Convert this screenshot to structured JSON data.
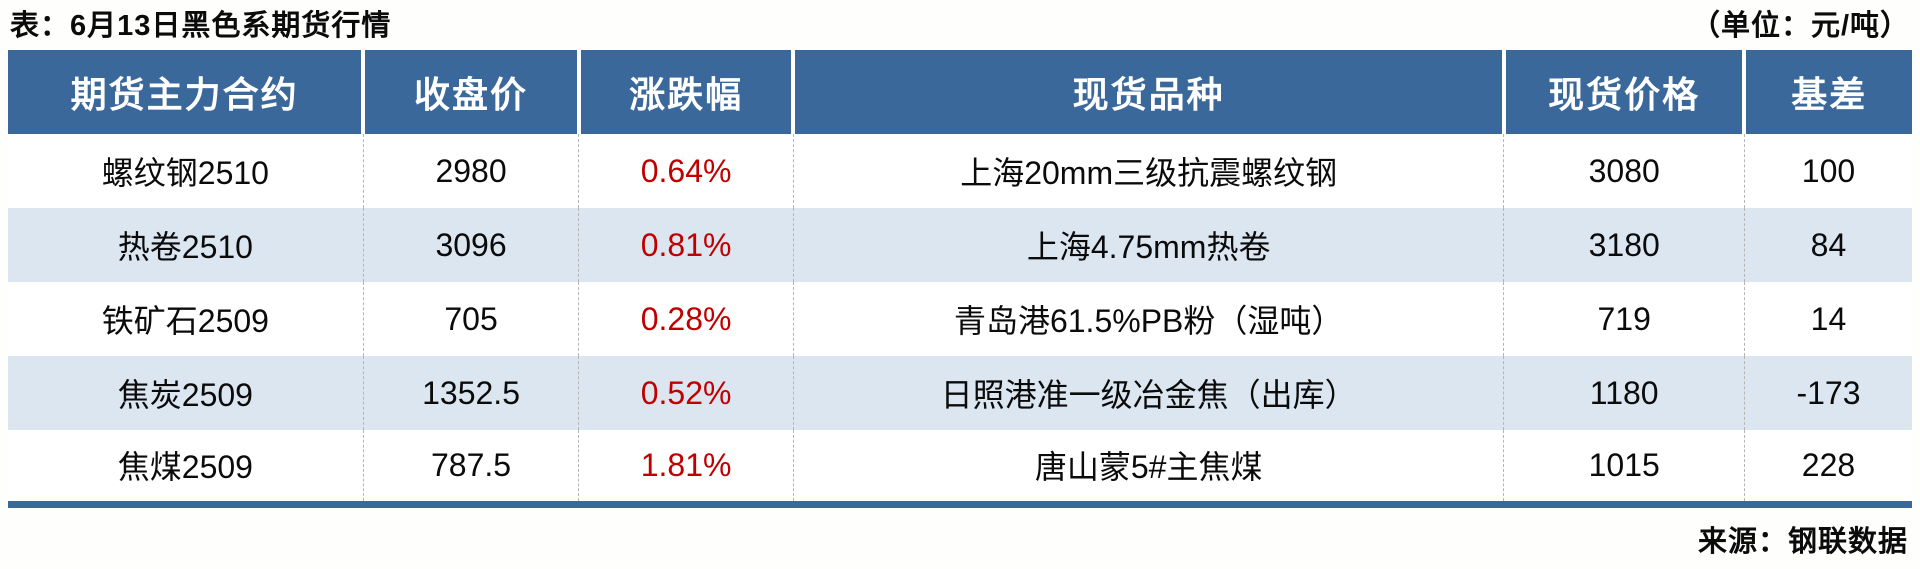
{
  "header": {
    "title": "表：6月13日黑色系期货行情",
    "unit": "（单位：元/吨）"
  },
  "footer": {
    "source": "来源：钢联数据"
  },
  "colors": {
    "header_bg": "#3a689b",
    "row_bg": "#ffffff",
    "row_alt_bg": "#dce6f1",
    "change_red": "#c00000",
    "border_blue": "#3a689b"
  },
  "chart_data": {
    "type": "table",
    "title": "6月13日黑色系期货行情",
    "unit": "元/吨",
    "columns": [
      "期货主力合约",
      "收盘价",
      "涨跌幅",
      "现货品种",
      "现货价格",
      "基差"
    ],
    "rows": [
      [
        "螺纹钢2510",
        "2980",
        "0.64%",
        "上海20mm三级抗震螺纹钢",
        "3080",
        "100"
      ],
      [
        "热卷2510",
        "3096",
        "0.81%",
        "上海4.75mm热卷",
        "3180",
        "84"
      ],
      [
        "铁矿石2509",
        "705",
        "0.28%",
        "青岛港61.5%PB粉（湿吨）",
        "719",
        "14"
      ],
      [
        "焦炭2509",
        "1352.5",
        "0.52%",
        "日照港准一级冶金焦（出库）",
        "1180",
        "-173"
      ],
      [
        "焦煤2509",
        "787.5",
        "1.81%",
        "唐山蒙5#主焦煤",
        "1015",
        "228"
      ]
    ],
    "change_column_index": 2,
    "change_color": "#c00000",
    "source": "钢联数据"
  }
}
